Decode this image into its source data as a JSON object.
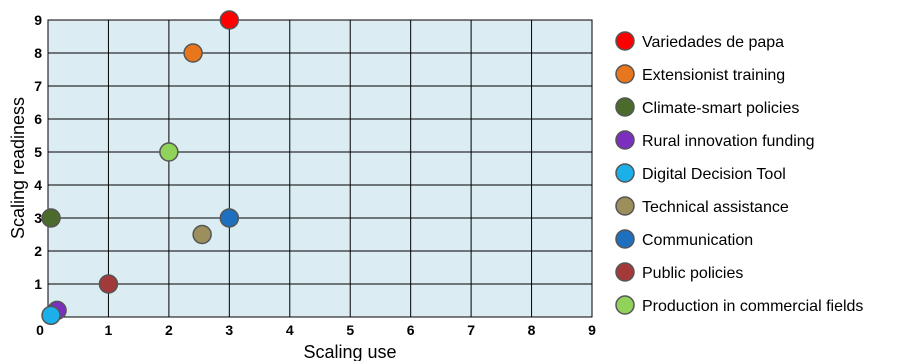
{
  "chart_data": {
    "type": "scatter",
    "title": "",
    "xlabel": "Scaling use",
    "ylabel": "Scaling readiness",
    "xlim": [
      0,
      9
    ],
    "ylim": [
      0,
      9
    ],
    "xticks": [
      "0",
      "1",
      "2",
      "3",
      "4",
      "5",
      "6",
      "7",
      "8",
      "9"
    ],
    "yticks": [
      "0",
      "1",
      "2",
      "3",
      "4",
      "5",
      "6",
      "7",
      "8",
      "9"
    ],
    "grid": true,
    "plot_background": "#dbedf3",
    "legend_position": "right",
    "series": [
      {
        "name": "Variedades de papa",
        "color": "#ff0000",
        "x": 3,
        "y": 9
      },
      {
        "name": "Extensionist training",
        "color": "#e8761c",
        "x": 2.4,
        "y": 8
      },
      {
        "name": "Climate-smart policies",
        "color": "#4a6b2c",
        "x": 0.05,
        "y": 3
      },
      {
        "name": "Rural innovation funding",
        "color": "#7b2fbe",
        "x": 0.15,
        "y": 0.2
      },
      {
        "name": "Digital Decision Tool",
        "color": "#1bb0ea",
        "x": 0.05,
        "y": 0.05
      },
      {
        "name": "Technical assistance",
        "color": "#9c8f5c",
        "x": 2.55,
        "y": 2.5
      },
      {
        "name": "Communication",
        "color": "#1f6fbf",
        "x": 3,
        "y": 3
      },
      {
        "name": "Public policies",
        "color": "#a33a3a",
        "x": 1,
        "y": 1
      },
      {
        "name": "Production in commercial fields",
        "color": "#90d25a",
        "x": 2,
        "y": 5
      }
    ]
  }
}
